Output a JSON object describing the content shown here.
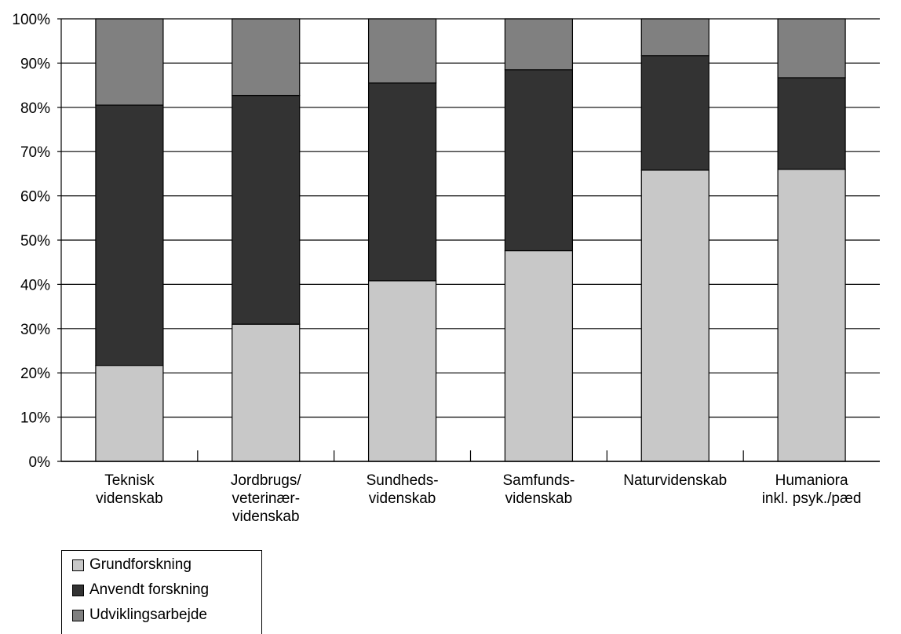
{
  "chart_data": {
    "type": "bar",
    "stacked": true,
    "normalized_percent": true,
    "categories": [
      [
        "Teknisk",
        "videnskab"
      ],
      [
        "Jordbrugs/",
        "veterinær-",
        "videnskab"
      ],
      [
        "Sundheds-",
        "videnskab"
      ],
      [
        "Samfunds-",
        "videnskab"
      ],
      [
        "Naturvidenskab"
      ],
      [
        "Humaniora",
        "inkl. psyk./pæd"
      ]
    ],
    "series": [
      {
        "name": "Grundforskning",
        "color": "#c8c8c8",
        "values": [
          21.7,
          31.0,
          40.8,
          47.6,
          65.8,
          66.0
        ]
      },
      {
        "name": "Anvendt forskning",
        "color": "#333333",
        "values": [
          58.8,
          51.7,
          44.7,
          40.9,
          25.9,
          20.7
        ]
      },
      {
        "name": "Udviklingsarbejde",
        "color": "#808080",
        "values": [
          19.5,
          17.3,
          14.5,
          11.5,
          8.3,
          13.3
        ]
      }
    ],
    "yticks": [
      "0%",
      "10%",
      "20%",
      "30%",
      "40%",
      "50%",
      "60%",
      "70%",
      "80%",
      "90%",
      "100%"
    ],
    "ylim": [
      0,
      100
    ],
    "grid": true,
    "legend_position": "bottom-left"
  }
}
